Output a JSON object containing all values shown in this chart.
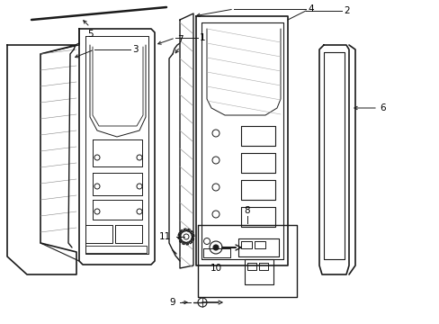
{
  "background_color": "#ffffff",
  "line_color": "#1a1a1a",
  "fig_width": 4.89,
  "fig_height": 3.6,
  "dpi": 100,
  "label_fs": 7.5,
  "lw_main": 1.0,
  "lw_thin": 0.6
}
